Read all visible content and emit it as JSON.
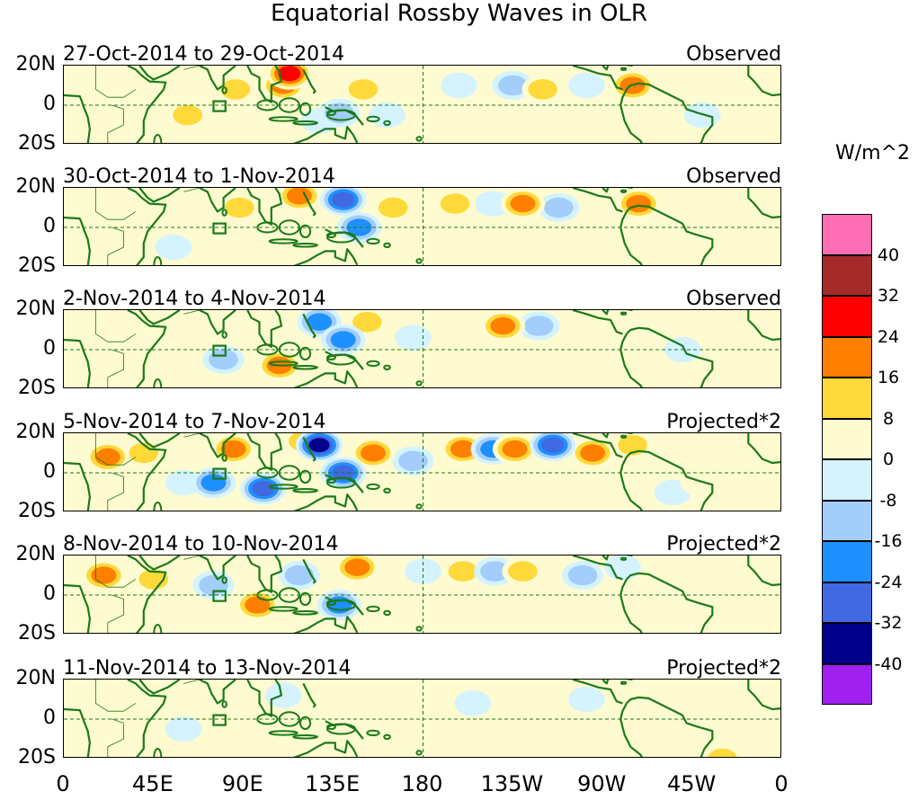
{
  "title": "Equatorial Rossby Waves in OLR",
  "lat_labels": [
    "20N",
    "0",
    "20S"
  ],
  "lon_labels": [
    "0",
    "45E",
    "90E",
    "135E",
    "180",
    "135W",
    "90W",
    "45W",
    "0"
  ],
  "units": "W/m^2",
  "panels": [
    {
      "date": "27-Oct-2014 to 29-Oct-2014",
      "kind": "Observed"
    },
    {
      "date": "30-Oct-2014 to 1-Nov-2014",
      "kind": "Observed"
    },
    {
      "date": "2-Nov-2014 to 4-Nov-2014",
      "kind": "Observed"
    },
    {
      "date": "5-Nov-2014 to 7-Nov-2014",
      "kind": "Projected*2"
    },
    {
      "date": "8-Nov-2014 to 10-Nov-2014",
      "kind": "Projected*2"
    },
    {
      "date": "11-Nov-2014 to 13-Nov-2014",
      "kind": "Projected*2"
    }
  ],
  "colorbar": {
    "levels": [
      "40",
      "32",
      "24",
      "16",
      "8",
      "0",
      "-8",
      "-16",
      "-24",
      "-32",
      "-40"
    ],
    "colors": [
      "#ff6eb4",
      "#a52a2a",
      "#ff0000",
      "#ff7f00",
      "#ffd93a",
      "#fffbd0",
      "#d4f3ff",
      "#a3cdfa",
      "#1e90ff",
      "#4169e1",
      "#00008b",
      "#a020f0"
    ]
  },
  "coastline_color": "#1a7a1a",
  "anomaly_fields": [
    [
      [
        62,
        -5,
        10
      ],
      [
        86,
        8,
        16
      ],
      [
        110,
        10,
        24
      ],
      [
        113,
        16,
        32
      ],
      [
        128,
        -8,
        -8
      ],
      [
        138,
        -4,
        -16
      ],
      [
        150,
        8,
        16
      ],
      [
        162,
        -5,
        -8
      ],
      [
        175,
        10,
        8
      ],
      [
        198,
        10,
        -8
      ],
      [
        225,
        10,
        -16
      ],
      [
        240,
        8,
        16
      ],
      [
        262,
        10,
        -8
      ],
      [
        285,
        10,
        24
      ],
      [
        300,
        0,
        8
      ],
      [
        320,
        -5,
        -8
      ]
    ],
    [
      [
        55,
        -10,
        -8
      ],
      [
        88,
        10,
        16
      ],
      [
        98,
        5,
        8
      ],
      [
        118,
        16,
        24
      ],
      [
        140,
        14,
        -32
      ],
      [
        148,
        0,
        -24
      ],
      [
        165,
        10,
        16
      ],
      [
        196,
        12,
        16
      ],
      [
        215,
        12,
        -8
      ],
      [
        230,
        12,
        24
      ],
      [
        248,
        10,
        -16
      ],
      [
        262,
        12,
        8
      ],
      [
        288,
        12,
        24
      ],
      [
        305,
        -5,
        8
      ]
    ],
    [
      [
        40,
        -8,
        8
      ],
      [
        80,
        -5,
        -16
      ],
      [
        108,
        -8,
        24
      ],
      [
        128,
        14,
        -24
      ],
      [
        140,
        5,
        -24
      ],
      [
        152,
        14,
        16
      ],
      [
        175,
        6,
        -8
      ],
      [
        205,
        12,
        8
      ],
      [
        220,
        12,
        24
      ],
      [
        238,
        12,
        -16
      ],
      [
        265,
        10,
        8
      ],
      [
        290,
        10,
        8
      ],
      [
        310,
        0,
        -8
      ]
    ],
    [
      [
        22,
        8,
        24
      ],
      [
        40,
        10,
        16
      ],
      [
        60,
        -5,
        -8
      ],
      [
        75,
        -5,
        -24
      ],
      [
        85,
        12,
        24
      ],
      [
        100,
        -8,
        -32
      ],
      [
        120,
        16,
        16
      ],
      [
        128,
        14,
        -40
      ],
      [
        140,
        0,
        -32
      ],
      [
        155,
        10,
        24
      ],
      [
        175,
        6,
        -16
      ],
      [
        200,
        12,
        24
      ],
      [
        215,
        12,
        -24
      ],
      [
        226,
        12,
        24
      ],
      [
        245,
        14,
        -32
      ],
      [
        265,
        10,
        24
      ],
      [
        285,
        14,
        16
      ],
      [
        305,
        -10,
        -8
      ],
      [
        318,
        -5,
        8
      ]
    ],
    [
      [
        20,
        10,
        24
      ],
      [
        45,
        8,
        16
      ],
      [
        75,
        5,
        -16
      ],
      [
        97,
        -5,
        24
      ],
      [
        118,
        10,
        -16
      ],
      [
        138,
        -5,
        -24
      ],
      [
        147,
        14,
        24
      ],
      [
        160,
        5,
        8
      ],
      [
        180,
        12,
        -8
      ],
      [
        200,
        12,
        16
      ],
      [
        216,
        12,
        -16
      ],
      [
        230,
        12,
        16
      ],
      [
        260,
        10,
        -16
      ],
      [
        280,
        14,
        -8
      ],
      [
        300,
        -5,
        8
      ]
    ],
    [
      [
        15,
        10,
        8
      ],
      [
        60,
        -5,
        -8
      ],
      [
        110,
        12,
        -8
      ],
      [
        140,
        8,
        8
      ],
      [
        175,
        5,
        8
      ],
      [
        205,
        8,
        -8
      ],
      [
        262,
        10,
        -8
      ],
      [
        285,
        10,
        8
      ],
      [
        300,
        -5,
        8
      ],
      [
        330,
        -20,
        16
      ]
    ]
  ]
}
